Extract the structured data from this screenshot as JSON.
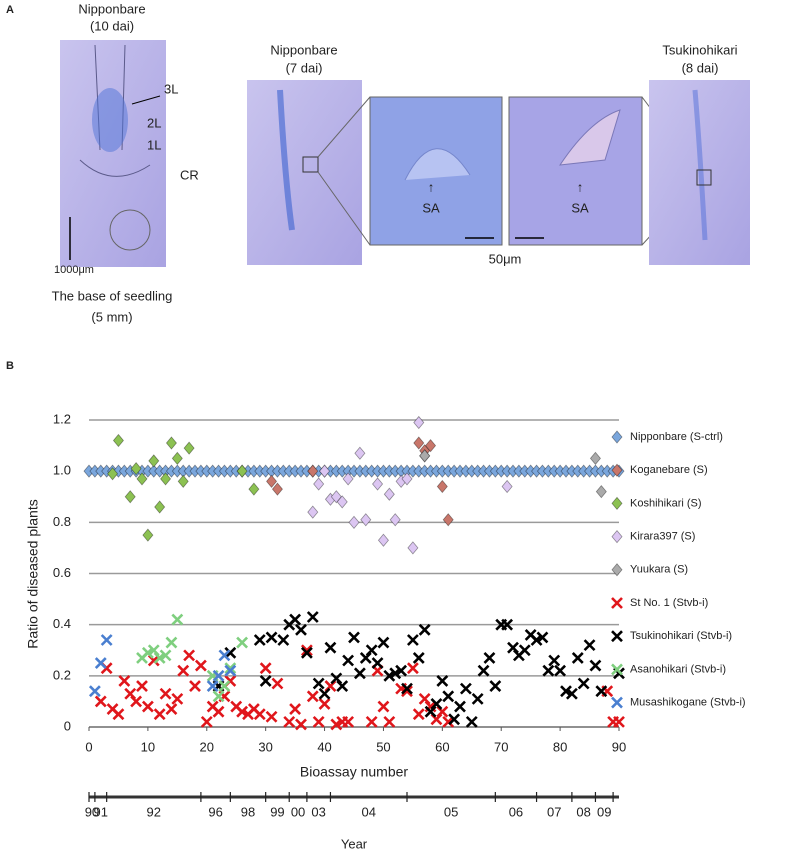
{
  "panel_a": {
    "label": "A",
    "left_title": [
      "Nipponbare",
      "(10 dai)"
    ],
    "leaf_labels": [
      "3L",
      "2L",
      "1L",
      "CR"
    ],
    "left_scale": "1000μm",
    "left_caption": [
      "The base of seedling",
      "(5 mm)"
    ],
    "middle_title": [
      "Nipponbare",
      "(7 dai)"
    ],
    "sa_labels": [
      "SA",
      "SA"
    ],
    "zoom_scale": "50μm",
    "right_title": [
      "Tsukinohikari",
      "(8 dai)"
    ]
  },
  "chart_data": {
    "type": "scatter",
    "panel_label": "B",
    "xlabel": "Bioassay number",
    "ylabel": "Ratio of diseased plants",
    "xlim": [
      0,
      90
    ],
    "xticks": [
      0,
      10,
      20,
      30,
      40,
      50,
      60,
      70,
      80,
      90
    ],
    "ylim": [
      0,
      1.2
    ],
    "yticks": [
      0,
      0.2,
      0.4,
      0.6,
      0.8,
      {
        "value": 1,
        "label": "1.0"
      },
      1.2
    ],
    "grid": true,
    "legend": "right",
    "year_axis": {
      "title": "Year",
      "labels": [
        "90",
        "91",
        "92",
        "96",
        "98",
        "99",
        "00",
        "03",
        "04",
        "05",
        "06",
        "07",
        "08",
        "09"
      ],
      "boundaries": [
        0,
        1,
        3,
        19,
        24,
        30,
        34,
        37,
        41,
        54,
        69,
        76,
        82,
        86,
        89
      ]
    },
    "series": [
      {
        "name": "Nipponbare (S-ctrl)",
        "color": "#7aa6dc",
        "marker": "diamond",
        "x": [
          0,
          1,
          2,
          3,
          4,
          5,
          6,
          7,
          8,
          9,
          10,
          11,
          12,
          13,
          14,
          15,
          16,
          17,
          18,
          19,
          20,
          21,
          22,
          23,
          24,
          25,
          26,
          27,
          28,
          29,
          30,
          31,
          32,
          33,
          34,
          35,
          36,
          37,
          38,
          39,
          40,
          41,
          42,
          43,
          44,
          45,
          46,
          47,
          48,
          49,
          50,
          51,
          52,
          53,
          54,
          55,
          56,
          57,
          58,
          59,
          60,
          61,
          62,
          63,
          64,
          65,
          66,
          67,
          68,
          69,
          70,
          71,
          72,
          73,
          74,
          75,
          76,
          77,
          78,
          79,
          80,
          81,
          82,
          83,
          84,
          85,
          86,
          87,
          88,
          89,
          90
        ],
        "values": [
          1,
          1,
          1,
          1,
          1,
          1,
          1,
          1,
          1,
          1,
          1,
          1,
          1,
          1,
          1,
          1,
          1,
          1,
          1,
          1,
          1,
          1,
          1,
          1,
          1,
          1,
          1,
          1,
          1,
          1,
          1,
          1,
          1,
          1,
          1,
          1,
          1,
          1,
          1,
          1,
          1,
          1,
          1,
          1,
          1,
          1,
          1,
          1,
          1,
          1,
          1,
          1,
          1,
          1,
          1,
          1,
          1,
          1,
          1,
          1,
          1,
          1,
          1,
          1,
          1,
          1,
          1,
          1,
          1,
          1,
          1,
          1,
          1,
          1,
          1,
          1,
          1,
          1,
          1,
          1,
          1,
          1,
          1,
          1,
          1,
          1,
          1,
          1,
          1,
          1,
          1
        ]
      },
      {
        "name": "Koganebare (S)",
        "color": "#c8766a",
        "marker": "diamond",
        "x": [
          31,
          32,
          38,
          56,
          57,
          58,
          60,
          61
        ],
        "values": [
          0.96,
          0.93,
          1.0,
          1.11,
          1.08,
          1.1,
          0.94,
          0.81
        ]
      },
      {
        "name": "Koshihikari (S)",
        "color": "#8cc152",
        "marker": "diamond",
        "x": [
          4,
          5,
          7,
          8,
          9,
          10,
          11,
          12,
          13,
          14,
          15,
          16,
          17,
          26,
          28
        ],
        "values": [
          0.99,
          1.12,
          0.9,
          1.01,
          0.97,
          0.75,
          1.04,
          0.86,
          0.97,
          1.11,
          1.05,
          0.96,
          1.09,
          1.0,
          0.93
        ]
      },
      {
        "name": "Kirara397 (S)",
        "color": "#dcc6f2",
        "marker": "diamond",
        "x": [
          38,
          39,
          40,
          41,
          42,
          43,
          44,
          45,
          46,
          47,
          49,
          50,
          51,
          52,
          53,
          54,
          55,
          56,
          57,
          71
        ],
        "values": [
          0.84,
          0.95,
          1.0,
          0.89,
          0.9,
          0.88,
          0.97,
          0.8,
          1.07,
          0.81,
          0.95,
          0.73,
          0.91,
          0.81,
          0.96,
          0.97,
          0.7,
          1.19,
          1.06,
          0.94
        ]
      },
      {
        "name": "Yuukara (S)",
        "color": "#aaaaaa",
        "marker": "diamond",
        "x": [
          57,
          86,
          87
        ],
        "values": [
          1.06,
          1.05,
          0.92
        ]
      },
      {
        "name": "St No. 1 (Stvb-i)",
        "color": "#e0161b",
        "marker": "cross",
        "x": [
          2,
          3,
          4,
          5,
          6,
          7,
          8,
          9,
          10,
          11,
          12,
          13,
          14,
          15,
          16,
          17,
          18,
          19,
          20,
          21,
          22,
          23,
          24,
          25,
          26,
          27,
          28,
          29,
          30,
          31,
          32,
          34,
          35,
          36,
          37,
          38,
          39,
          40,
          41,
          42,
          43,
          44,
          48,
          49,
          50,
          51,
          53,
          54,
          55,
          56,
          57,
          58,
          59,
          60,
          61,
          88,
          89,
          90
        ],
        "values": [
          0.1,
          0.23,
          0.07,
          0.05,
          0.18,
          0.13,
          0.1,
          0.16,
          0.08,
          0.26,
          0.05,
          0.13,
          0.07,
          0.11,
          0.22,
          0.28,
          0.16,
          0.24,
          0.02,
          0.08,
          0.06,
          0.12,
          0.18,
          0.08,
          0.06,
          0.05,
          0.07,
          0.05,
          0.23,
          0.04,
          0.17,
          0.02,
          0.07,
          0.01,
          0.3,
          0.12,
          0.02,
          0.09,
          0.16,
          0.01,
          0.02,
          0.02,
          0.02,
          0.22,
          0.08,
          0.02,
          0.15,
          0.14,
          0.23,
          0.05,
          0.11,
          0.08,
          0.03,
          0.06,
          0.02,
          0.14,
          0.02,
          0.02
        ]
      },
      {
        "name": "Tsukinohikari (Stvb-i)",
        "color": "#000000",
        "marker": "cross",
        "x": [
          22,
          24,
          29,
          30,
          31,
          33,
          34,
          35,
          36,
          37,
          38,
          39,
          40,
          41,
          42,
          43,
          44,
          45,
          46,
          47,
          48,
          49,
          50,
          51,
          52,
          53,
          54,
          55,
          56,
          57,
          58,
          59,
          60,
          61,
          62,
          63,
          64,
          65,
          66,
          67,
          68,
          69,
          70,
          71,
          72,
          73,
          74,
          75,
          76,
          77,
          78,
          79,
          80,
          81,
          82,
          83,
          84,
          85,
          86,
          87,
          90
        ],
        "values": [
          0.16,
          0.29,
          0.34,
          0.18,
          0.35,
          0.34,
          0.4,
          0.42,
          0.38,
          0.29,
          0.43,
          0.17,
          0.13,
          0.31,
          0.19,
          0.16,
          0.26,
          0.35,
          0.21,
          0.27,
          0.3,
          0.25,
          0.33,
          0.2,
          0.21,
          0.22,
          0.15,
          0.34,
          0.27,
          0.38,
          0.06,
          0.09,
          0.18,
          0.12,
          0.03,
          0.08,
          0.15,
          0.02,
          0.11,
          0.22,
          0.27,
          0.16,
          0.4,
          0.4,
          0.31,
          0.28,
          0.3,
          0.36,
          0.34,
          0.35,
          0.22,
          0.26,
          0.22,
          0.14,
          0.13,
          0.27,
          0.17,
          0.32,
          0.24,
          0.14,
          0.21
        ]
      },
      {
        "name": "Asanohikari (Stvb-i)",
        "color": "#7fcf7f",
        "marker": "cross",
        "x": [
          9,
          10,
          11,
          12,
          13,
          14,
          15,
          21,
          22,
          23,
          24,
          26
        ],
        "values": [
          0.27,
          0.29,
          0.3,
          0.27,
          0.28,
          0.33,
          0.42,
          0.2,
          0.12,
          0.16,
          0.23,
          0.33
        ]
      },
      {
        "name": "Musashikogane (Stvb-i)",
        "color": "#4a7fd0",
        "marker": "cross",
        "x": [
          1,
          2,
          3,
          21,
          22,
          23,
          24
        ],
        "values": [
          0.14,
          0.25,
          0.34,
          0.16,
          0.2,
          0.28,
          0.22
        ]
      }
    ]
  }
}
